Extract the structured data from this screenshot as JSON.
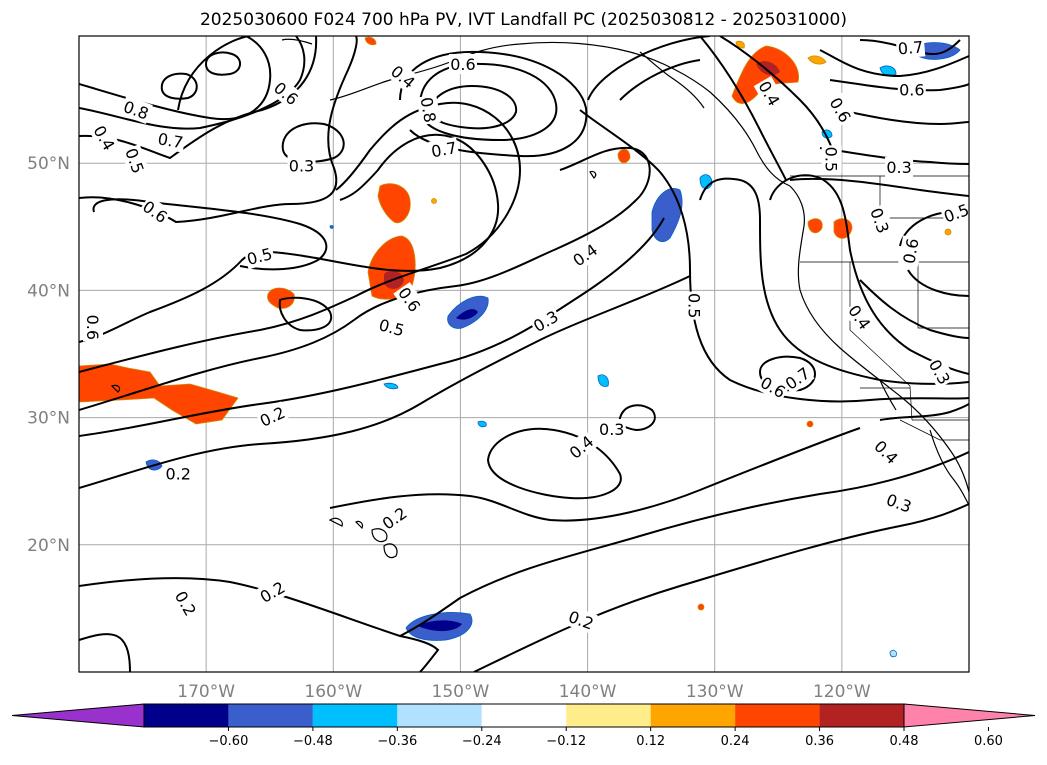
{
  "title": "2025030600 F024 700 hPa PV, IVT Landfall PC (2025030812 - 2025031000)",
  "map": {
    "projection": "PlateCarree",
    "lon_range": [
      -180,
      -110
    ],
    "lat_range": [
      10,
      60
    ],
    "gridlines": true,
    "coastlines": true,
    "state_borders": true,
    "lat_ticks": [
      {
        "value": 20,
        "label": "20°N"
      },
      {
        "value": 30,
        "label": "30°N"
      },
      {
        "value": 40,
        "label": "40°N"
      },
      {
        "value": 50,
        "label": "50°N"
      }
    ],
    "lon_ticks": [
      {
        "value": -170,
        "label": "170°W"
      },
      {
        "value": -160,
        "label": "160°W"
      },
      {
        "value": -150,
        "label": "150°W"
      },
      {
        "value": -140,
        "label": "140°W"
      },
      {
        "value": -130,
        "label": "130°W"
      },
      {
        "value": -120,
        "label": "120°W"
      }
    ]
  },
  "colorbar": {
    "extend": "both",
    "colors": [
      "#9932cc",
      "#00008b",
      "#3a5fcd",
      "#00bfff",
      "#b0e2ff",
      "#ffffff",
      "#ffec8b",
      "#ffa500",
      "#ff4500",
      "#b22222",
      "#ff82ab"
    ],
    "tick_labels": [
      "−0.60",
      "−0.48",
      "−0.36",
      "−0.24",
      "−0.12",
      "0.12",
      "0.24",
      "0.36",
      "0.48",
      "0.60"
    ]
  },
  "contour_labels": [
    {
      "text": "0.8",
      "lon": -175.5,
      "lat": 54.2,
      "rot": 20
    },
    {
      "text": "0.7",
      "lon": -172.8,
      "lat": 51.8,
      "rot": 10
    },
    {
      "text": "0.4",
      "lon": -178,
      "lat": 52,
      "rot": 60
    },
    {
      "text": "0.5",
      "lon": -175.6,
      "lat": 50.2,
      "rot": 70
    },
    {
      "text": "0.6",
      "lon": -174,
      "lat": 46.2,
      "rot": 35
    },
    {
      "text": "0.6",
      "lon": -178.9,
      "lat": 37.1,
      "rot": 90
    },
    {
      "text": "0.3",
      "lon": -162.5,
      "lat": 49.8,
      "rot": 0
    },
    {
      "text": "0.6",
      "lon": -163.7,
      "lat": 55.5,
      "rot": 40
    },
    {
      "text": "0.4",
      "lon": -154.5,
      "lat": 56.8,
      "rot": 40
    },
    {
      "text": "0.6",
      "lon": -149.8,
      "lat": 57.8,
      "rot": 0
    },
    {
      "text": "0.8",
      "lon": -152.5,
      "lat": 54.2,
      "rot": 80
    },
    {
      "text": "0.7",
      "lon": -151.3,
      "lat": 51.1,
      "rot": -10
    },
    {
      "text": "0.5",
      "lon": -165.8,
      "lat": 42.7,
      "rot": -15
    },
    {
      "text": "0.6",
      "lon": -154,
      "lat": 39.3,
      "rot": 55
    },
    {
      "text": "0.5",
      "lon": -155.4,
      "lat": 37.1,
      "rot": 15
    },
    {
      "text": "0.4",
      "lon": -140.2,
      "lat": 42.8,
      "rot": -35
    },
    {
      "text": "0.3",
      "lon": -143.3,
      "lat": 37.6,
      "rot": -30
    },
    {
      "text": "0.2",
      "lon": -164.8,
      "lat": 30.1,
      "rot": -25
    },
    {
      "text": "0.2",
      "lon": -172.2,
      "lat": 25.6,
      "rot": 0
    },
    {
      "text": "0.4",
      "lon": -140.5,
      "lat": 27.7,
      "rot": -40
    },
    {
      "text": "0.3",
      "lon": -138.1,
      "lat": 29.1,
      "rot": 0
    },
    {
      "text": "0.2",
      "lon": -155.2,
      "lat": 22.1,
      "rot": -35
    },
    {
      "text": "0.2",
      "lon": -164.8,
      "lat": 16.3,
      "rot": -30
    },
    {
      "text": "0.2",
      "lon": -171.6,
      "lat": 15.4,
      "rot": 60
    },
    {
      "text": "0.2",
      "lon": -140.5,
      "lat": 14.1,
      "rot": 20
    },
    {
      "text": "0.5",
      "lon": -131.6,
      "lat": 38.8,
      "rot": 90
    },
    {
      "text": "0.6",
      "lon": -125.4,
      "lat": 32.4,
      "rot": 30
    },
    {
      "text": "0.7",
      "lon": -123.5,
      "lat": 33.1,
      "rot": -35
    },
    {
      "text": "0.4",
      "lon": -118.6,
      "lat": 37.9,
      "rot": 55
    },
    {
      "text": "0.3",
      "lon": -117,
      "lat": 45.5,
      "rot": 70
    },
    {
      "text": "0.6",
      "lon": -114.6,
      "lat": 43.1,
      "rot": -80
    },
    {
      "text": "0.5",
      "lon": -111,
      "lat": 46.1,
      "rot": -20
    },
    {
      "text": "0.3",
      "lon": -112.3,
      "lat": 33.6,
      "rot": 60
    },
    {
      "text": "0.3",
      "lon": -115.5,
      "lat": 49.7,
      "rot": 0
    },
    {
      "text": "0.5",
      "lon": -120.8,
      "lat": 50.3,
      "rot": 90
    },
    {
      "text": "0.6",
      "lon": -120.1,
      "lat": 54.2,
      "rot": 60
    },
    {
      "text": "0.6",
      "lon": -114.5,
      "lat": 55.8,
      "rot": 0
    },
    {
      "text": "0.7",
      "lon": -114.6,
      "lat": 59.1,
      "rot": -5
    },
    {
      "text": "0.4",
      "lon": -116.5,
      "lat": 27.3,
      "rot": 45
    },
    {
      "text": "0.3",
      "lon": -115.5,
      "lat": 23.3,
      "rot": 20
    },
    {
      "text": "0.4",
      "lon": -125.7,
      "lat": 55.5,
      "rot": 60
    }
  ]
}
